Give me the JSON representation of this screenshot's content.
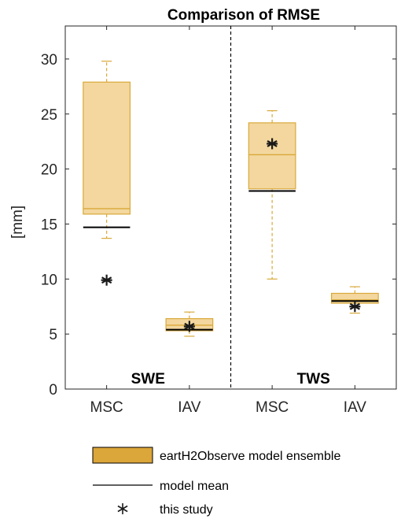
{
  "chart_data": {
    "type": "box",
    "title": "Comparison of RMSE",
    "xlabel": "",
    "ylabel": "[mm]",
    "ylim": [
      0,
      33
    ],
    "yticks": [
      0,
      5,
      10,
      15,
      20,
      25,
      30
    ],
    "categories": [
      "MSC",
      "IAV",
      "MSC",
      "IAV"
    ],
    "sections": [
      "SWE",
      "TWS"
    ],
    "grid": false,
    "legend_placement": "bottom",
    "colors": {
      "box_fill": "#f3d79e",
      "box_edge": "#d9a93a",
      "legend_box_fill": "#dba63a",
      "mean_line": "#000000",
      "divider": "#000000"
    },
    "series": [
      {
        "name": "eartH2Observe model ensemble",
        "boxes": [
          {
            "whisker_low": 13.7,
            "q1": 15.9,
            "median": 16.4,
            "q3": 27.9,
            "whisker_high": 29.8
          },
          {
            "whisker_low": 4.8,
            "q1": 5.3,
            "median": 5.8,
            "q3": 6.4,
            "whisker_high": 7.0
          },
          {
            "whisker_low": 10.0,
            "q1": 18.2,
            "median": 21.3,
            "q3": 24.2,
            "whisker_high": 25.3
          },
          {
            "whisker_low": 6.9,
            "q1": 7.8,
            "median": 8.1,
            "q3": 8.7,
            "whisker_high": 9.3
          }
        ]
      },
      {
        "name": "model mean",
        "values": [
          14.7,
          5.4,
          18.0,
          8.0
        ]
      },
      {
        "name": "this study",
        "values": [
          9.9,
          5.7,
          22.3,
          7.5
        ]
      }
    ],
    "legend": [
      {
        "label": "eartH2Observe model ensemble",
        "symbol": "box"
      },
      {
        "label": "model mean",
        "symbol": "line"
      },
      {
        "label": "this study",
        "symbol": "asterisk"
      }
    ]
  }
}
